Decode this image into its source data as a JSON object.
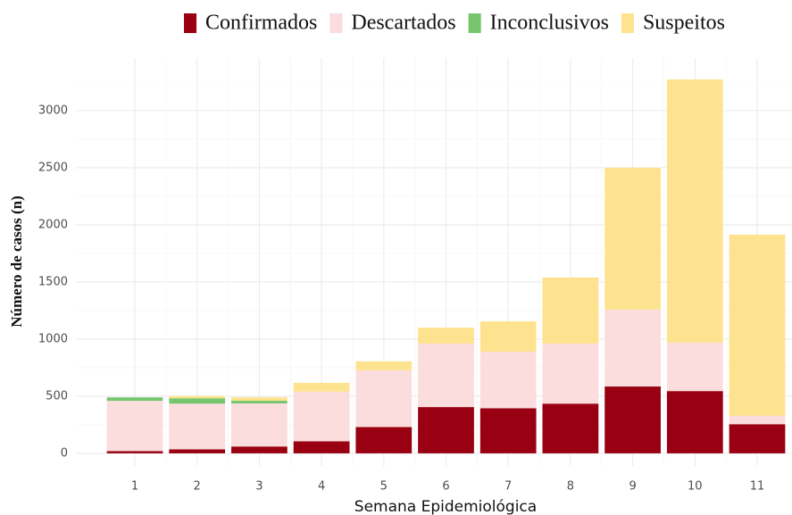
{
  "chart_data": {
    "type": "stacked_bar",
    "x_label": "Semana Epidemiológica",
    "y_label": "Número de casos (n)",
    "categories": [
      "1",
      "2",
      "3",
      "4",
      "5",
      "6",
      "7",
      "8",
      "9",
      "10",
      "11"
    ],
    "series": [
      {
        "name": "Confirmados",
        "color": "#990011",
        "values": [
          20,
          35,
          60,
          105,
          230,
          405,
          395,
          435,
          585,
          545,
          255
        ]
      },
      {
        "name": "Descartados",
        "color": "#fadddc",
        "values": [
          440,
          400,
          377,
          435,
          497,
          556,
          495,
          526,
          673,
          424,
          73
        ]
      },
      {
        "name": "Inconclusivos",
        "color": "#77c66e",
        "values": [
          30,
          47,
          24,
          0,
          0,
          0,
          0,
          0,
          0,
          0,
          0
        ]
      },
      {
        "name": "Suspeitos",
        "color": "#fde38f",
        "values": [
          0,
          20,
          30,
          77,
          78,
          139,
          266,
          578,
          1242,
          2304,
          1586
        ]
      }
    ],
    "ylim": [
      -110,
      3460
    ],
    "yticks": [
      0,
      500,
      1000,
      1500,
      2000,
      2500,
      3000
    ],
    "y_minor_ticks": [
      250,
      750,
      1250,
      1750,
      2250,
      2750,
      3250
    ],
    "grid": true,
    "legend_position": "top"
  }
}
